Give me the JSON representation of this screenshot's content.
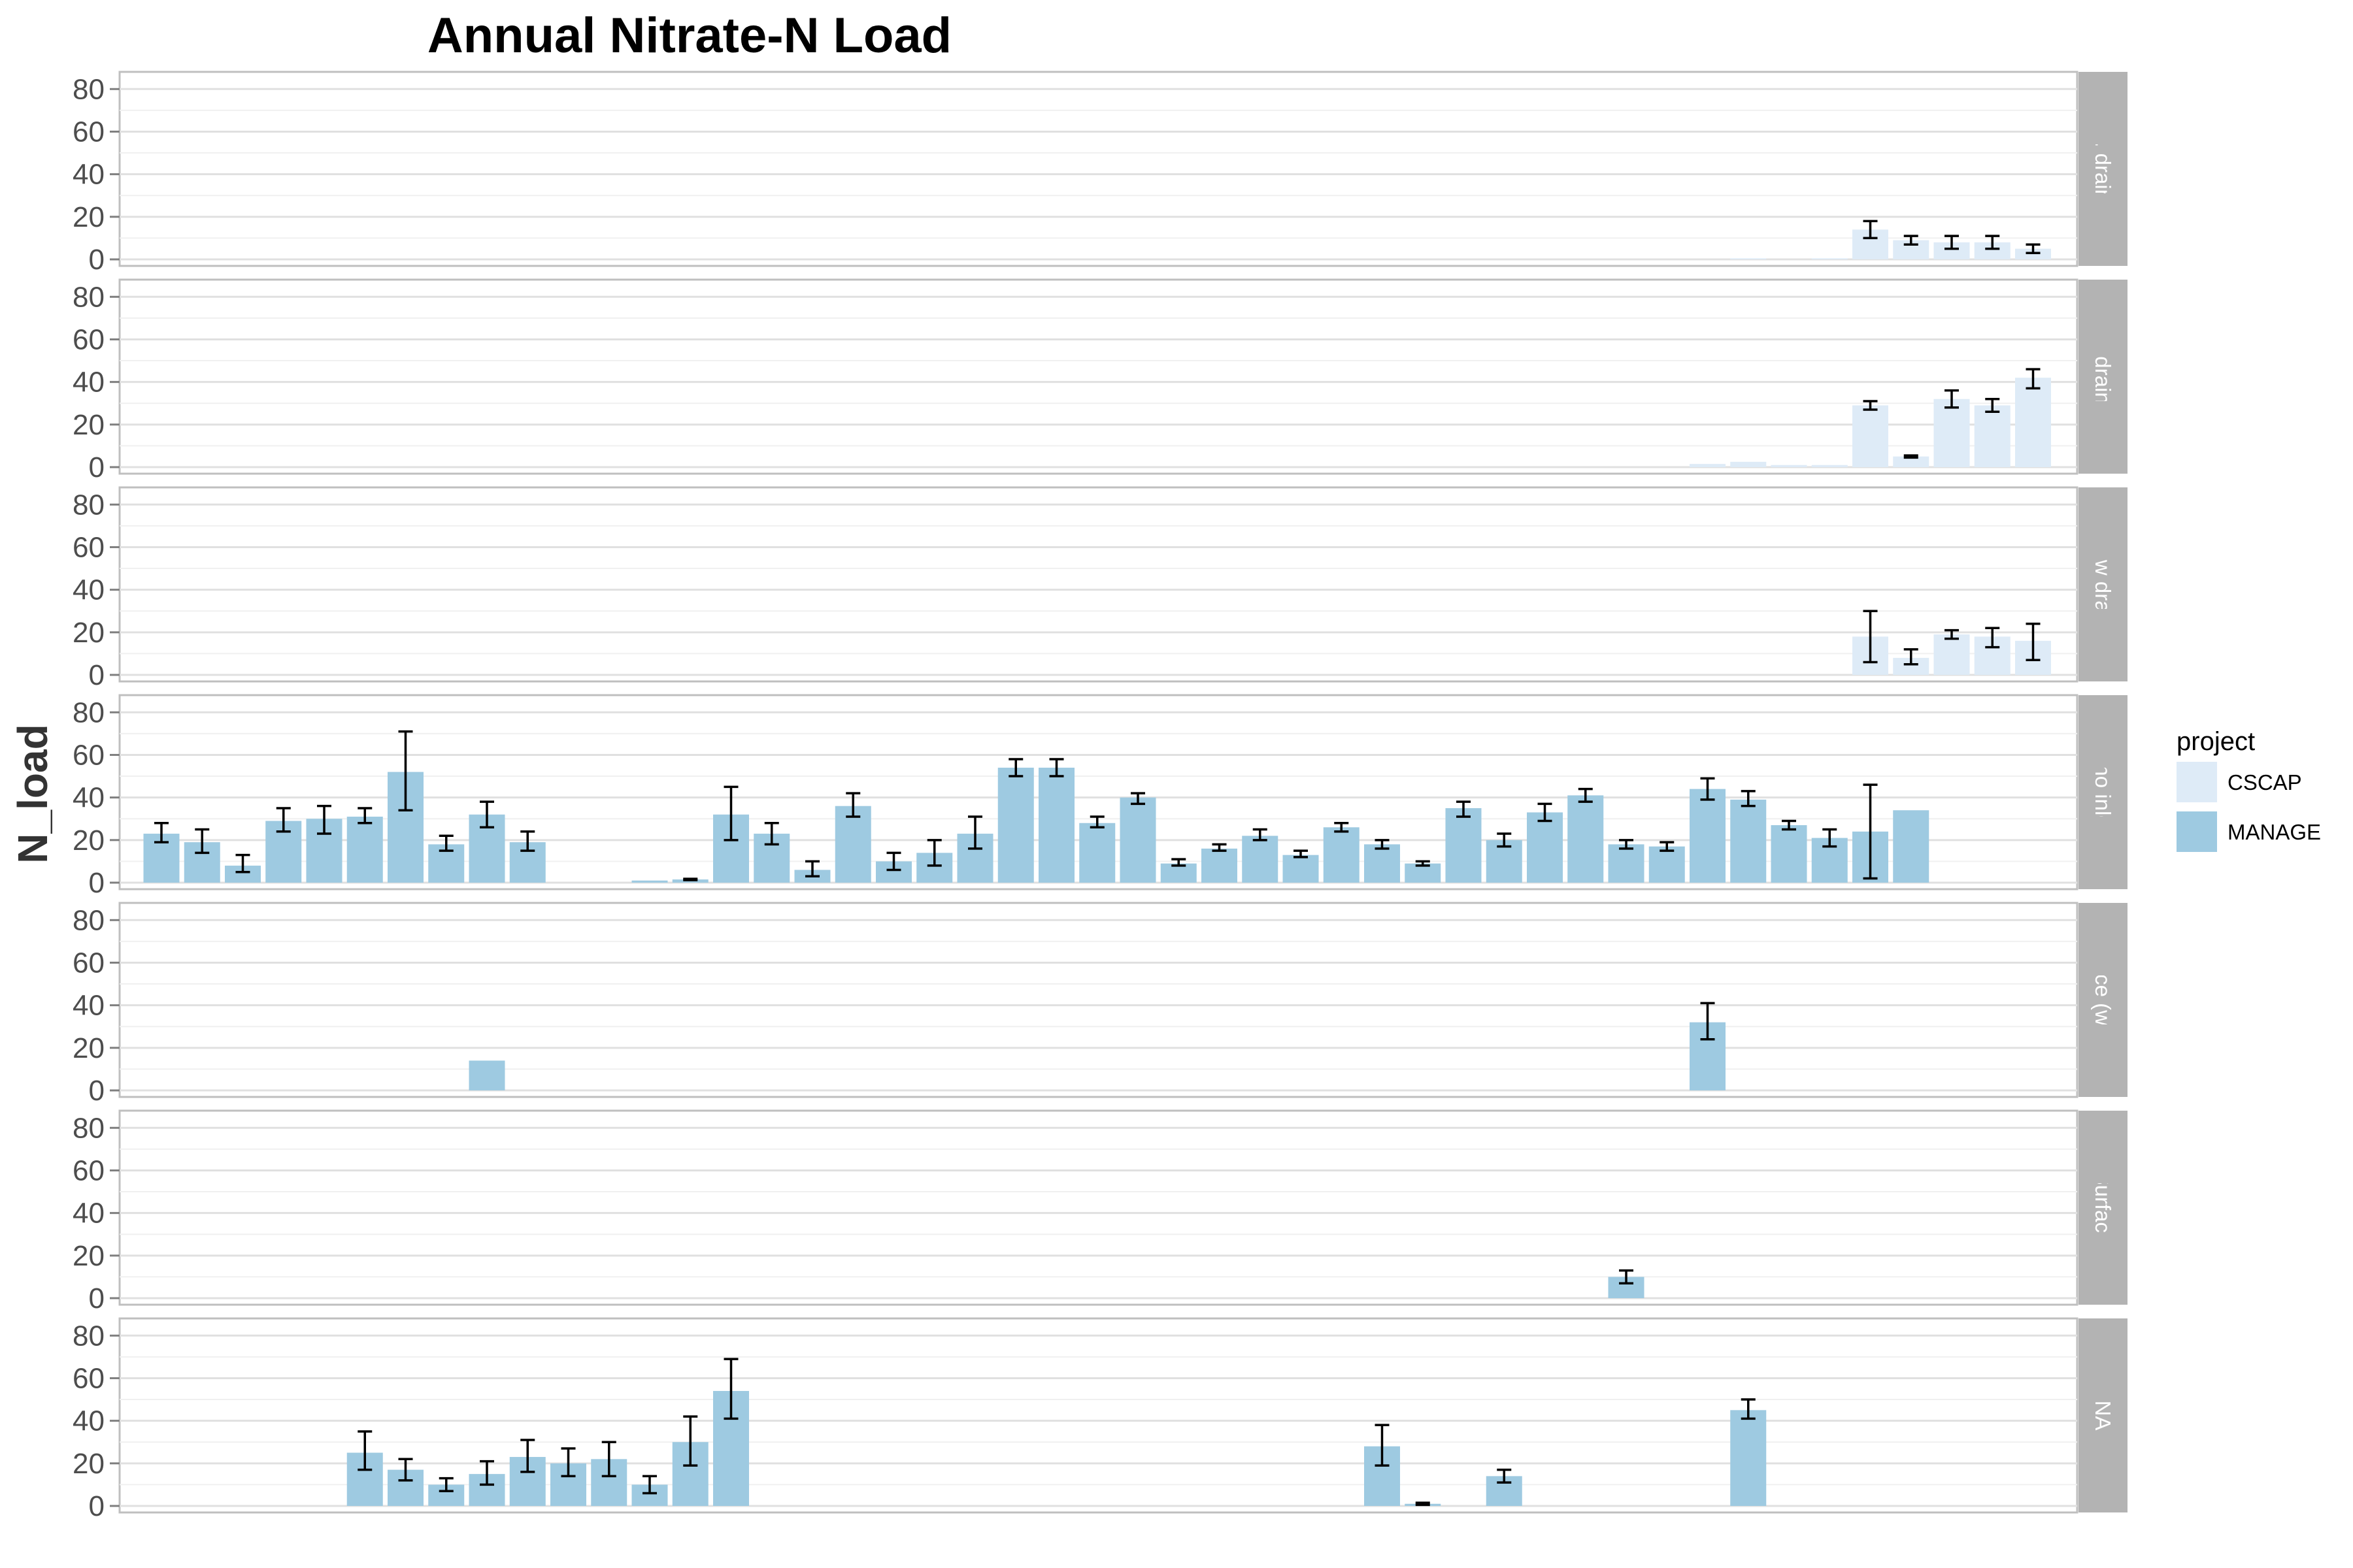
{
  "chart_data": {
    "type": "bar",
    "title": "Annual Nitrate-N Load",
    "ylabel": "N_load",
    "xlabel": "",
    "ylim": [
      0,
      85
    ],
    "yticks": [
      "0",
      "20",
      "40",
      "60",
      "80"
    ],
    "n_categories": 48,
    "legend": {
      "title": "project",
      "placement": "right",
      "entries": [
        {
          "name": "CSCAP",
          "color": "#deebf7"
        },
        {
          "name": "MANAGE",
          "color": "#9ecae1"
        }
      ]
    },
    "panels": [
      {
        "label": "cont. drainage",
        "bars": [
          {
            "i": 39,
            "project": "CSCAP",
            "value": 0.5
          },
          {
            "i": 41,
            "project": "CSCAP",
            "value": 0.5
          },
          {
            "i": 42,
            "project": "CSCAP",
            "value": 14,
            "err": [
              10,
              18
            ]
          },
          {
            "i": 43,
            "project": "CSCAP",
            "value": 9,
            "err": [
              7,
              11
            ]
          },
          {
            "i": 44,
            "project": "CSCAP",
            "value": 8,
            "err": [
              5,
              11
            ]
          },
          {
            "i": 45,
            "project": "CSCAP",
            "value": 8,
            "err": [
              5,
              11
            ]
          },
          {
            "i": 46,
            "project": "CSCAP",
            "value": 5,
            "err": [
              3,
              7
            ]
          }
        ]
      },
      {
        "label": "free drainage",
        "bars": [
          {
            "i": 38,
            "project": "CSCAP",
            "value": 1.5
          },
          {
            "i": 39,
            "project": "CSCAP",
            "value": 2.5
          },
          {
            "i": 40,
            "project": "CSCAP",
            "value": 1
          },
          {
            "i": 41,
            "project": "CSCAP",
            "value": 1
          },
          {
            "i": 42,
            "project": "CSCAP",
            "value": 29,
            "err": [
              27,
              31
            ]
          },
          {
            "i": 43,
            "project": "CSCAP",
            "value": 5,
            "err": [
              4.5,
              5.5
            ]
          },
          {
            "i": 44,
            "project": "CSCAP",
            "value": 32,
            "err": [
              28,
              36
            ]
          },
          {
            "i": 45,
            "project": "CSCAP",
            "value": 29,
            "err": [
              26,
              32
            ]
          },
          {
            "i": 46,
            "project": "CSCAP",
            "value": 42,
            "err": [
              37,
              46
            ]
          }
        ]
      },
      {
        "label": "shallow drainage",
        "bars": [
          {
            "i": 42,
            "project": "CSCAP",
            "value": 18,
            "err": [
              6,
              30
            ]
          },
          {
            "i": 43,
            "project": "CSCAP",
            "value": 8,
            "err": [
              5,
              12
            ]
          },
          {
            "i": 44,
            "project": "CSCAP",
            "value": 19,
            "err": [
              17,
              21
            ]
          },
          {
            "i": 45,
            "project": "CSCAP",
            "value": 18,
            "err": [
              13,
              22
            ]
          },
          {
            "i": 46,
            "project": "CSCAP",
            "value": 16,
            "err": [
              7,
              24
            ]
          }
        ]
      },
      {
        "label": "Subsurface (no inlets specified)",
        "bars": [
          {
            "i": 0,
            "project": "MANAGE",
            "value": 23,
            "err": [
              19,
              28
            ]
          },
          {
            "i": 1,
            "project": "MANAGE",
            "value": 19,
            "err": [
              14,
              25
            ]
          },
          {
            "i": 2,
            "project": "MANAGE",
            "value": 8,
            "err": [
              5,
              13
            ]
          },
          {
            "i": 3,
            "project": "MANAGE",
            "value": 29,
            "err": [
              24,
              35
            ]
          },
          {
            "i": 4,
            "project": "MANAGE",
            "value": 30,
            "err": [
              23,
              36
            ]
          },
          {
            "i": 5,
            "project": "MANAGE",
            "value": 31,
            "err": [
              28,
              35
            ]
          },
          {
            "i": 6,
            "project": "MANAGE",
            "value": 52,
            "err": [
              34,
              71
            ]
          },
          {
            "i": 7,
            "project": "MANAGE",
            "value": 18,
            "err": [
              15,
              22
            ]
          },
          {
            "i": 8,
            "project": "MANAGE",
            "value": 32,
            "err": [
              26,
              38
            ]
          },
          {
            "i": 9,
            "project": "MANAGE",
            "value": 19,
            "err": [
              15,
              24
            ]
          },
          {
            "i": 12,
            "project": "MANAGE",
            "value": 1
          },
          {
            "i": 13,
            "project": "MANAGE",
            "value": 1.5,
            "err": [
              1.2,
              1.8
            ]
          },
          {
            "i": 14,
            "project": "MANAGE",
            "value": 32,
            "err": [
              20,
              45
            ]
          },
          {
            "i": 15,
            "project": "MANAGE",
            "value": 23,
            "err": [
              18,
              28
            ]
          },
          {
            "i": 16,
            "project": "MANAGE",
            "value": 6,
            "err": [
              3,
              10
            ]
          },
          {
            "i": 17,
            "project": "MANAGE",
            "value": 36,
            "err": [
              31,
              42
            ]
          },
          {
            "i": 18,
            "project": "MANAGE",
            "value": 10,
            "err": [
              6,
              14
            ]
          },
          {
            "i": 19,
            "project": "MANAGE",
            "value": 14,
            "err": [
              8,
              20
            ]
          },
          {
            "i": 20,
            "project": "MANAGE",
            "value": 23,
            "err": [
              16,
              31
            ]
          },
          {
            "i": 21,
            "project": "MANAGE",
            "value": 54,
            "err": [
              50,
              58
            ]
          },
          {
            "i": 22,
            "project": "MANAGE",
            "value": 54,
            "err": [
              50,
              58
            ]
          },
          {
            "i": 23,
            "project": "MANAGE",
            "value": 28,
            "err": [
              26,
              31
            ]
          },
          {
            "i": 24,
            "project": "MANAGE",
            "value": 40,
            "err": [
              37,
              42
            ]
          },
          {
            "i": 25,
            "project": "MANAGE",
            "value": 9,
            "err": [
              8,
              11
            ]
          },
          {
            "i": 26,
            "project": "MANAGE",
            "value": 16,
            "err": [
              15,
              18
            ]
          },
          {
            "i": 27,
            "project": "MANAGE",
            "value": 22,
            "err": [
              20,
              25
            ]
          },
          {
            "i": 28,
            "project": "MANAGE",
            "value": 13,
            "err": [
              12,
              15
            ]
          },
          {
            "i": 29,
            "project": "MANAGE",
            "value": 26,
            "err": [
              24,
              28
            ]
          },
          {
            "i": 30,
            "project": "MANAGE",
            "value": 18,
            "err": [
              16,
              20
            ]
          },
          {
            "i": 31,
            "project": "MANAGE",
            "value": 9,
            "err": [
              8,
              10
            ]
          },
          {
            "i": 32,
            "project": "MANAGE",
            "value": 35,
            "err": [
              31,
              38
            ]
          },
          {
            "i": 33,
            "project": "MANAGE",
            "value": 20,
            "err": [
              17,
              23
            ]
          },
          {
            "i": 34,
            "project": "MANAGE",
            "value": 33,
            "err": [
              29,
              37
            ]
          },
          {
            "i": 35,
            "project": "MANAGE",
            "value": 41,
            "err": [
              38,
              44
            ]
          },
          {
            "i": 36,
            "project": "MANAGE",
            "value": 18,
            "err": [
              16,
              20
            ]
          },
          {
            "i": 37,
            "project": "MANAGE",
            "value": 17,
            "err": [
              15,
              19
            ]
          },
          {
            "i": 38,
            "project": "MANAGE",
            "value": 44,
            "err": [
              39,
              49
            ]
          },
          {
            "i": 39,
            "project": "MANAGE",
            "value": 39,
            "err": [
              36,
              43
            ]
          },
          {
            "i": 40,
            "project": "MANAGE",
            "value": 27,
            "err": [
              25,
              29
            ]
          },
          {
            "i": 41,
            "project": "MANAGE",
            "value": 21,
            "err": [
              17,
              25
            ]
          },
          {
            "i": 42,
            "project": "MANAGE",
            "value": 24,
            "err": [
              2,
              46
            ]
          },
          {
            "i": 43,
            "project": "MANAGE",
            "value": 34
          }
        ]
      },
      {
        "label": "Subsurface (with inlets)",
        "bars": [
          {
            "i": 8,
            "project": "MANAGE",
            "value": 14
          },
          {
            "i": 38,
            "project": "MANAGE",
            "value": 32,
            "err": [
              24,
              41
            ]
          }
        ]
      },
      {
        "label": "Surface",
        "bars": [
          {
            "i": 36,
            "project": "MANAGE",
            "value": 10,
            "err": [
              7,
              13
            ]
          }
        ]
      },
      {
        "label": "NA",
        "bars": [
          {
            "i": 5,
            "project": "MANAGE",
            "value": 25,
            "err": [
              17,
              35
            ]
          },
          {
            "i": 6,
            "project": "MANAGE",
            "value": 17,
            "err": [
              12,
              22
            ]
          },
          {
            "i": 7,
            "project": "MANAGE",
            "value": 10,
            "err": [
              7,
              13
            ]
          },
          {
            "i": 8,
            "project": "MANAGE",
            "value": 15,
            "err": [
              10,
              21
            ]
          },
          {
            "i": 9,
            "project": "MANAGE",
            "value": 23,
            "err": [
              16,
              31
            ]
          },
          {
            "i": 10,
            "project": "MANAGE",
            "value": 20,
            "err": [
              14,
              27
            ]
          },
          {
            "i": 11,
            "project": "MANAGE",
            "value": 22,
            "err": [
              14,
              30
            ]
          },
          {
            "i": 12,
            "project": "MANAGE",
            "value": 10,
            "err": [
              6,
              14
            ]
          },
          {
            "i": 13,
            "project": "MANAGE",
            "value": 30,
            "err": [
              19,
              42
            ]
          },
          {
            "i": 14,
            "project": "MANAGE",
            "value": 54,
            "err": [
              41,
              69
            ]
          },
          {
            "i": 30,
            "project": "MANAGE",
            "value": 28,
            "err": [
              19,
              38
            ]
          },
          {
            "i": 31,
            "project": "MANAGE",
            "value": 1,
            "err": [
              0.5,
              1.5
            ]
          },
          {
            "i": 33,
            "project": "MANAGE",
            "value": 14,
            "err": [
              11,
              17
            ]
          },
          {
            "i": 39,
            "project": "MANAGE",
            "value": 45,
            "err": [
              41,
              50
            ]
          }
        ]
      }
    ]
  }
}
